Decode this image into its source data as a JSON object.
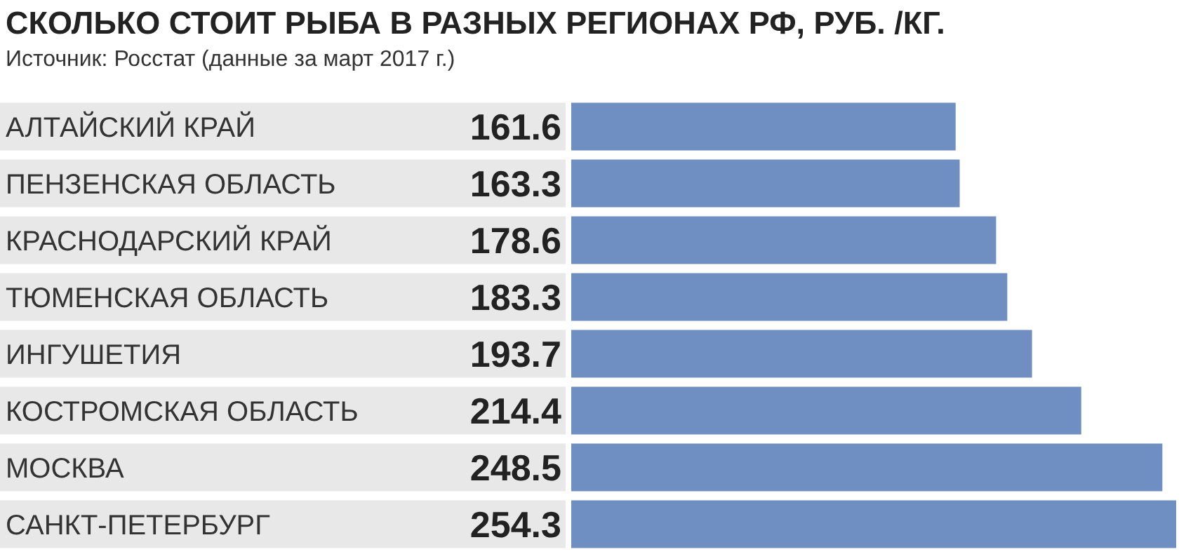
{
  "chart_data": {
    "type": "bar",
    "orientation": "horizontal",
    "title": "СКОЛЬКО СТОИТ РЫБА В РАЗНЫХ РЕГИОНАХ РФ, РУБ. /КГ.",
    "subtitle": "Источник: Росстат (данные за март 2017 г.)",
    "categories": [
      "АЛТАЙСКИЙ КРАЙ",
      "ПЕНЗЕНСКАЯ ОБЛАСТЬ",
      "КРАСНОДАРСКИЙ КРАЙ",
      "ТЮМЕНСКАЯ ОБЛАСТЬ",
      "ИНГУШЕТИЯ",
      "КОСТРОМСКАЯ ОБЛАСТЬ",
      "МОСКВА",
      "САНКТ-ПЕТЕРБУРГ"
    ],
    "values": [
      161.6,
      163.3,
      178.6,
      183.3,
      193.7,
      214.4,
      248.5,
      254.3
    ],
    "color": "#6f8fc2",
    "data_labels": true
  }
}
